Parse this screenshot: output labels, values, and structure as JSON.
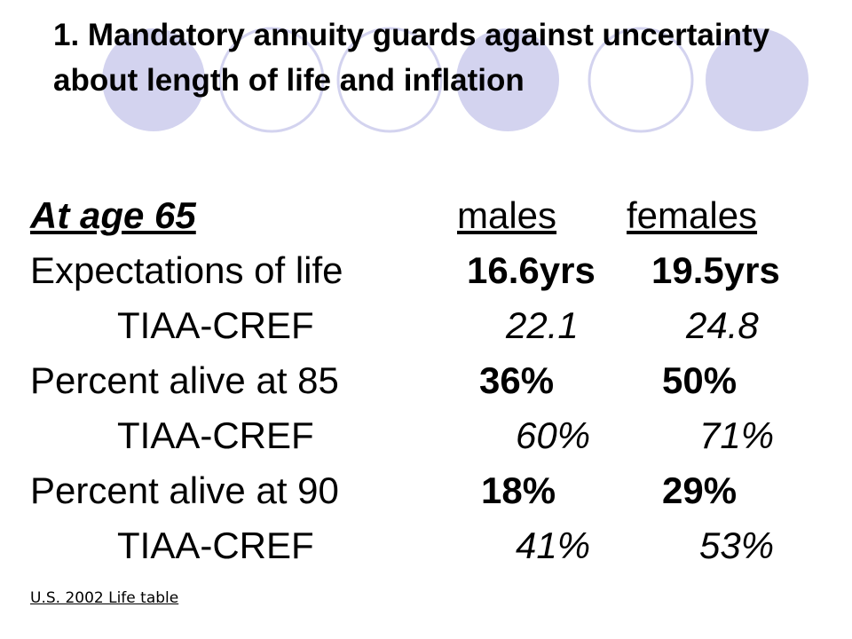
{
  "slide": {
    "title": "1. Mandatory annuity guards against uncertainty about length of life and inflation",
    "header": {
      "label": "At age 65",
      "males": "males",
      "females": "females"
    },
    "rows": [
      {
        "label": "Expectations of life",
        "males": "16.6yrs",
        "females": "19.5yrs"
      },
      {
        "label": "TIAA-CREF",
        "males": "22.1",
        "females": "24.8"
      },
      {
        "label": "Percent alive at 85",
        "males": "36%",
        "females": "50%"
      },
      {
        "label": "TIAA-CREF",
        "males": "60%",
        "females": "71%"
      },
      {
        "label": "Percent alive at 90",
        "males": "18%",
        "females": "29%"
      },
      {
        "label": "TIAA-CREF",
        "males": "41%",
        "females": "53%"
      }
    ],
    "source": "U.S. 2002 Life table",
    "colors": {
      "circle_fill": "#d3d3ef",
      "circle_stroke": "#d3d3ef"
    }
  }
}
